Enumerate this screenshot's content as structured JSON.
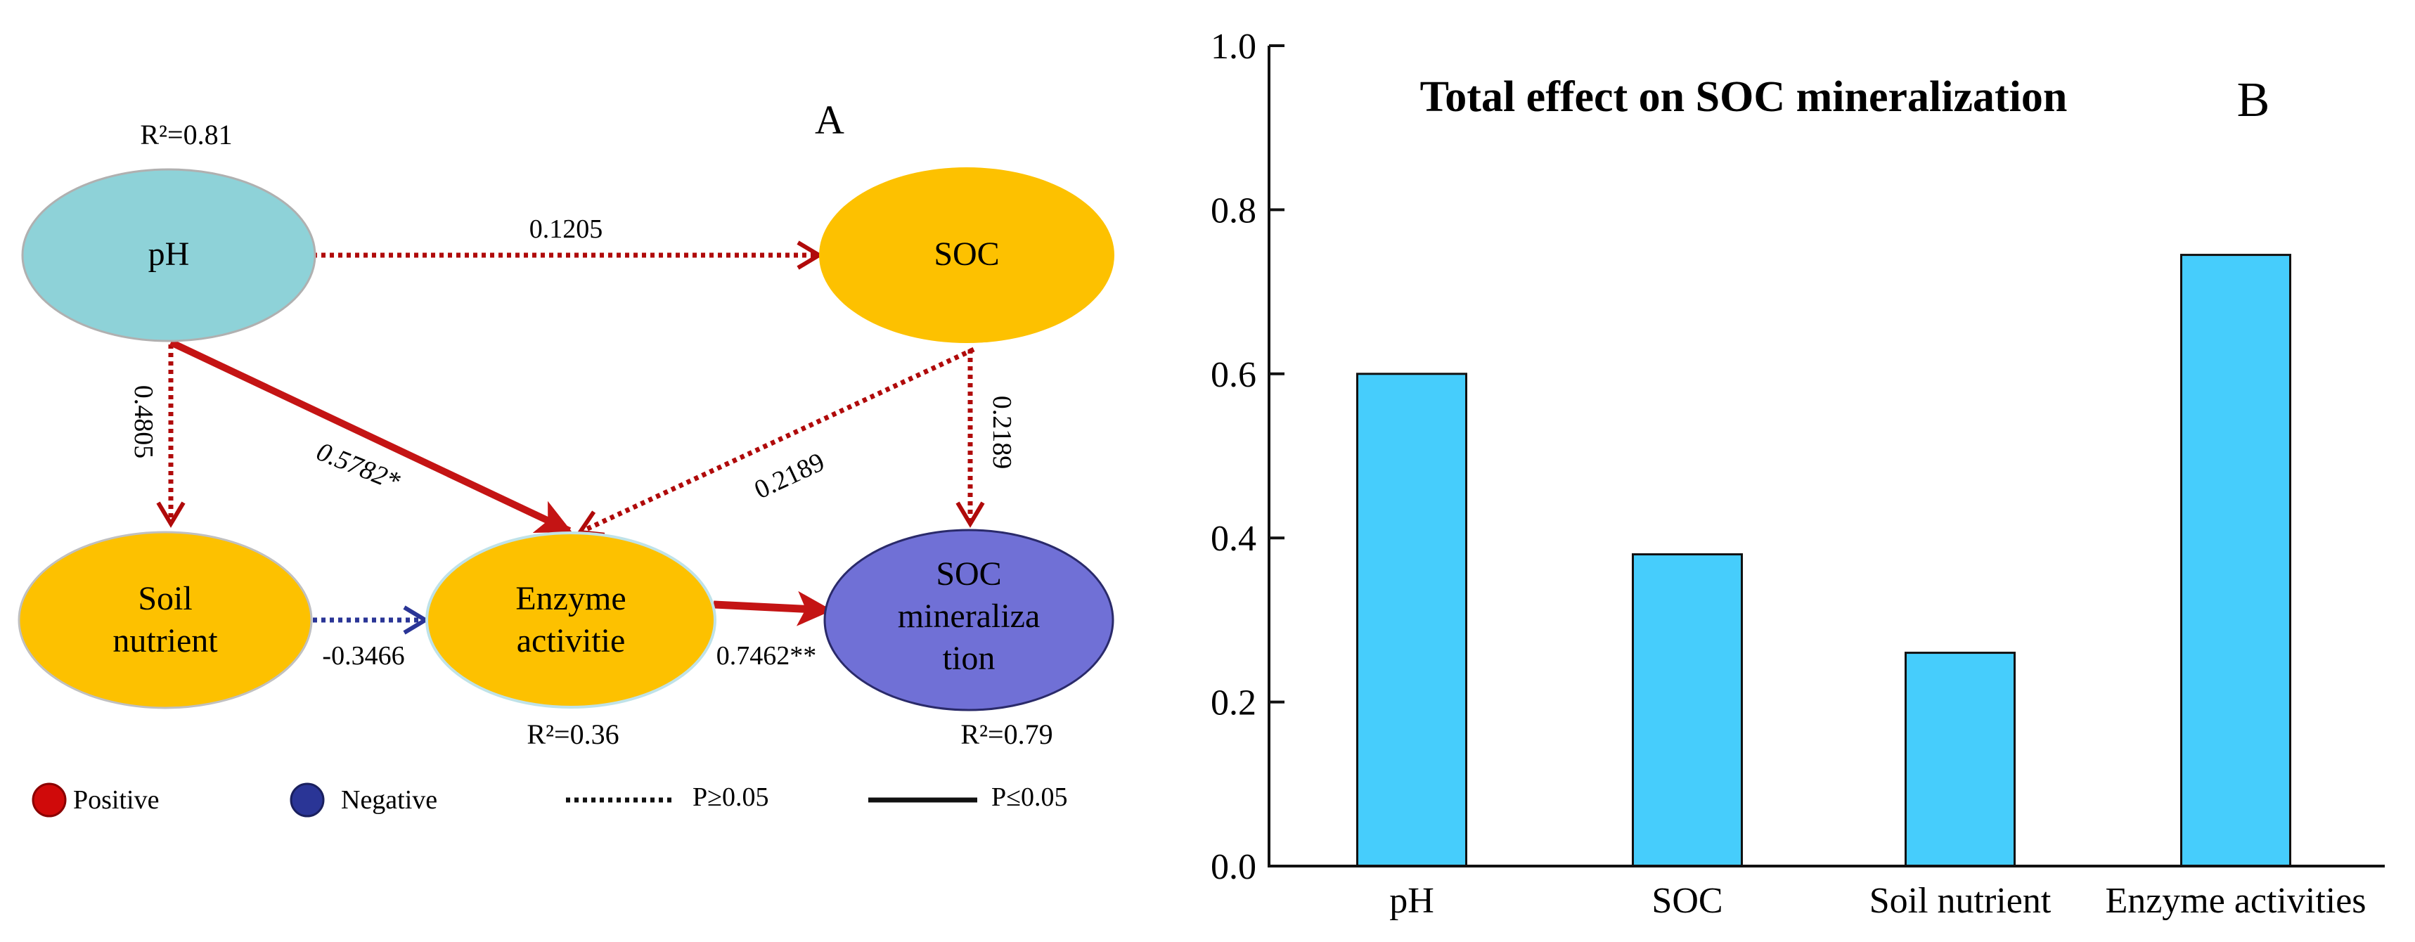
{
  "panel_a": {
    "label": "A",
    "nodes": {
      "ph": {
        "lines": [
          "pH"
        ],
        "r2": "R²=0.81"
      },
      "soc": {
        "lines": [
          "SOC"
        ]
      },
      "soil": {
        "lines": [
          "Soil",
          "nutrient"
        ]
      },
      "enzyme": {
        "lines": [
          "Enzyme",
          "activitie"
        ],
        "r2": "R²=0.36"
      },
      "socmin": {
        "lines": [
          "SOC",
          "mineraliza",
          "tion"
        ],
        "r2": "R²=0.79"
      }
    },
    "paths": {
      "ph_soc": "0.1205",
      "ph_soil": "0.4805",
      "ph_enzyme": "0.5782*",
      "soc_enzyme": "0.2189",
      "soc_socmin": "0.2189",
      "soil_enzyme": "-0.3466",
      "enzyme_socmin": "0.7462**"
    },
    "legend": {
      "positive": "Positive",
      "negative": "Negative",
      "dotted": "P≥0.05",
      "solid": "P≤0.05"
    },
    "colors": {
      "ph": "#8ed2d8",
      "orange": "#fdc100",
      "purple": "#7070d6",
      "positive": "#b00a0a",
      "negative": "#2a3596"
    }
  },
  "panel_b": {
    "label": "B"
  },
  "chart_data": {
    "type": "bar",
    "title": "Total effect on SOC mineralization",
    "categories": [
      "pH",
      "SOC",
      "Soil nutrient",
      "Enzyme activities"
    ],
    "values": [
      0.6,
      0.38,
      0.26,
      0.745
    ],
    "xlabel": "",
    "ylabel": "",
    "ylim": [
      0,
      1.0
    ],
    "yticks": [
      "0.0",
      "0.2",
      "0.4",
      "0.6",
      "0.8",
      "1.0"
    ],
    "bar_color": "#46cdfc"
  }
}
